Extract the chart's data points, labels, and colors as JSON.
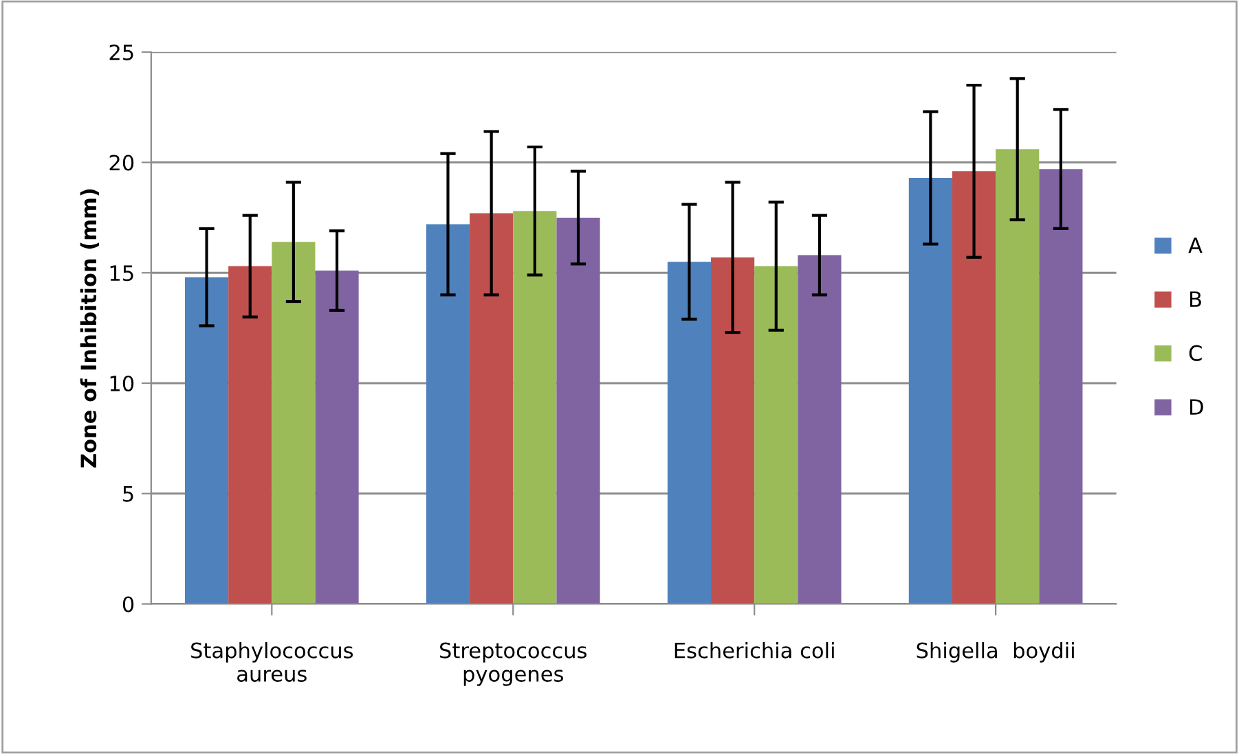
{
  "chart_data": {
    "type": "bar",
    "ylabel": "Zone of Inhibition (mm)",
    "categories": [
      "Staphylococcus\naureus",
      "Streptococcus\npyogenes",
      "Escherichia coli",
      "Shigella  boydii"
    ],
    "series": [
      {
        "name": "A",
        "color": "#4f81bd",
        "values": [
          14.8,
          17.2,
          15.5,
          19.3
        ],
        "errors": [
          2.2,
          3.2,
          2.6,
          3.0
        ]
      },
      {
        "name": "B",
        "color": "#c0504d",
        "values": [
          15.3,
          17.7,
          15.7,
          19.6
        ],
        "errors": [
          2.3,
          3.7,
          3.4,
          3.9
        ]
      },
      {
        "name": "C",
        "color": "#9bbb59",
        "values": [
          16.4,
          17.8,
          15.3,
          20.6
        ],
        "errors": [
          2.7,
          2.9,
          2.9,
          3.2
        ]
      },
      {
        "name": "D",
        "color": "#8064a2",
        "values": [
          15.1,
          17.5,
          15.8,
          19.7
        ],
        "errors": [
          1.8,
          2.1,
          1.8,
          2.7
        ]
      }
    ],
    "ylim": [
      0,
      25
    ],
    "yticks": [
      0,
      5,
      10,
      15,
      20,
      25
    ],
    "grid": "y",
    "legend": "right"
  }
}
